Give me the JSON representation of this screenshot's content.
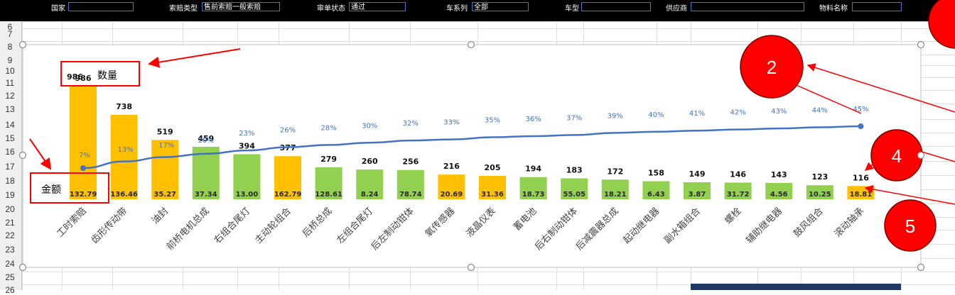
{
  "filters": [
    {
      "label": "国家",
      "value": ""
    },
    {
      "label": "索赔类型",
      "value": "售前索赔一般索赔"
    },
    {
      "label": "审单状态",
      "value": "通过"
    },
    {
      "label": "车系列",
      "value": "全部"
    },
    {
      "label": "车型",
      "value": ""
    },
    {
      "label": "供应商",
      "value": ""
    },
    {
      "label": "物料名称",
      "value": ""
    }
  ],
  "row_numbers": [
    "6",
    "7",
    "8",
    "9",
    "10",
    "11",
    "12",
    "13",
    "14",
    "15",
    "16",
    "17",
    "18",
    "19",
    "20",
    "21",
    "22",
    "23",
    "24",
    "25",
    "26"
  ],
  "annotations": {
    "quantity_label": "数量",
    "quantity_value": "986",
    "amount_label": "金额",
    "circles": [
      "2",
      "4",
      "5"
    ]
  },
  "colors": {
    "bar_orange": "#ffc000",
    "bar_green": "#92d050",
    "line_blue": "#4472c4",
    "callout_red": "#ff0000",
    "filter_bg": "#000000"
  },
  "chart_data": {
    "type": "bar",
    "categories": [
      "工时索赔",
      "齿形传动带",
      "油封",
      "前桥电机总成",
      "右组合尾灯",
      "主动轮组合",
      "后桥总成",
      "左组合尾灯",
      "后左制动钳体",
      "氧传感器",
      "液晶仪表",
      "蓄电池",
      "后右制动钳体",
      "后减震器总成",
      "起动继电器",
      "副水箱组合",
      "螺栓",
      "辅助继电器",
      "鼓风组合",
      "滚动轴承"
    ],
    "series": [
      {
        "name": "数量",
        "values": [
          986,
          738,
          519,
          459,
          394,
          377,
          279,
          260,
          256,
          216,
          205,
          194,
          183,
          172,
          158,
          149,
          146,
          143,
          123,
          116
        ]
      },
      {
        "name": "金额",
        "values": [
          "132.79",
          "136.46",
          "35.27",
          "37.34",
          "13.00",
          "162.79",
          "128.61",
          "8.24",
          "78.74",
          "20.69",
          "31.36",
          "18.73",
          "55.05",
          "18.21",
          "6.43",
          "3.87",
          "31.72",
          "4.56",
          "10.25",
          "18.81"
        ]
      },
      {
        "name": "",
        "values": [
          "7%",
          "13%",
          "17%",
          "20%",
          "23%",
          "26%",
          "28%",
          "30%",
          "32%",
          "33%",
          "35%",
          "36%",
          "37%",
          "39%",
          "40%",
          "41%",
          "42%",
          "43%",
          "44%",
          "45%"
        ]
      }
    ],
    "bar_colors": [
      "orange",
      "orange",
      "orange",
      "green",
      "green",
      "orange",
      "green",
      "green",
      "green",
      "orange",
      "orange",
      "green",
      "green",
      "green",
      "green",
      "green",
      "green",
      "green",
      "green",
      "orange"
    ],
    "ylim": [
      0,
      1000
    ]
  }
}
